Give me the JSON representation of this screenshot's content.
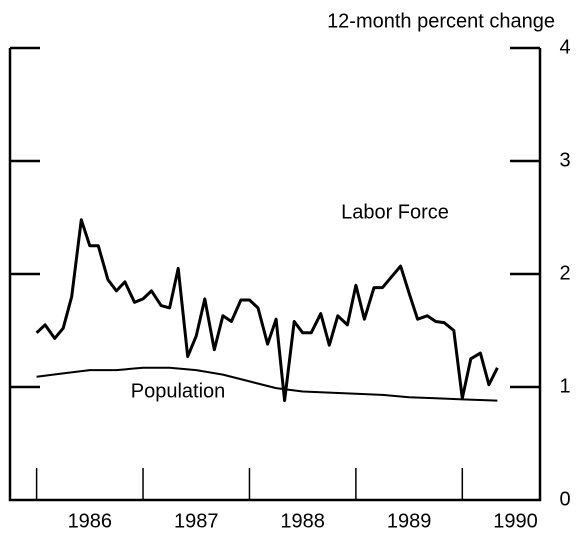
{
  "chart_data": {
    "type": "line",
    "y_axis_label": "12-month percent change",
    "annotations": [
      "Labor Force",
      "Population"
    ],
    "xlim": [
      1985.75,
      1990.73
    ],
    "xticks": [
      {
        "value": 1986,
        "label": "1986"
      },
      {
        "value": 1987,
        "label": "1987"
      },
      {
        "value": 1988,
        "label": "1988"
      },
      {
        "value": 1989,
        "label": "1989"
      },
      {
        "value": 1990,
        "label": "1990"
      }
    ],
    "ylim": [
      0,
      4
    ],
    "yticks": [
      0,
      1,
      2,
      3,
      4
    ],
    "series": [
      {
        "name": "Labor Force",
        "color": "#000000",
        "x": [
          1986.0,
          1986.08,
          1986.17,
          1986.25,
          1986.33,
          1986.42,
          1986.5,
          1986.58,
          1986.67,
          1986.75,
          1986.83,
          1986.92,
          1987.0,
          1987.08,
          1987.17,
          1987.25,
          1987.33,
          1987.42,
          1987.5,
          1987.58,
          1987.67,
          1987.75,
          1987.83,
          1987.92,
          1988.0,
          1988.08,
          1988.17,
          1988.25,
          1988.33,
          1988.42,
          1988.5,
          1988.58,
          1988.67,
          1988.75,
          1988.83,
          1988.92,
          1989.0,
          1989.08,
          1989.17,
          1989.25,
          1989.33,
          1989.42,
          1989.5,
          1989.58,
          1989.67,
          1989.75,
          1989.83,
          1989.92,
          1990.0,
          1990.08,
          1990.17,
          1990.25,
          1990.33
        ],
        "values": [
          1.48,
          1.55,
          1.43,
          1.52,
          1.8,
          2.48,
          2.25,
          2.25,
          1.95,
          1.85,
          1.93,
          1.75,
          1.78,
          1.85,
          1.72,
          1.7,
          2.05,
          1.27,
          1.45,
          1.78,
          1.33,
          1.63,
          1.58,
          1.77,
          1.77,
          1.7,
          1.38,
          1.6,
          0.88,
          1.58,
          1.48,
          1.48,
          1.65,
          1.37,
          1.63,
          1.55,
          1.9,
          1.6,
          1.88,
          1.88,
          1.97,
          2.07,
          1.83,
          1.6,
          1.63,
          1.58,
          1.57,
          1.5,
          0.9,
          1.25,
          1.3,
          1.02,
          1.17
        ]
      },
      {
        "name": "Population",
        "color": "#000000",
        "x": [
          1986.0,
          1986.25,
          1986.5,
          1986.75,
          1987.0,
          1987.25,
          1987.5,
          1987.75,
          1988.0,
          1988.25,
          1988.5,
          1988.75,
          1989.0,
          1989.25,
          1989.5,
          1989.75,
          1990.0,
          1990.33
        ],
        "values": [
          1.09,
          1.12,
          1.15,
          1.15,
          1.17,
          1.17,
          1.15,
          1.11,
          1.05,
          0.99,
          0.96,
          0.95,
          0.94,
          0.93,
          0.91,
          0.9,
          0.89,
          0.88
        ]
      }
    ]
  }
}
